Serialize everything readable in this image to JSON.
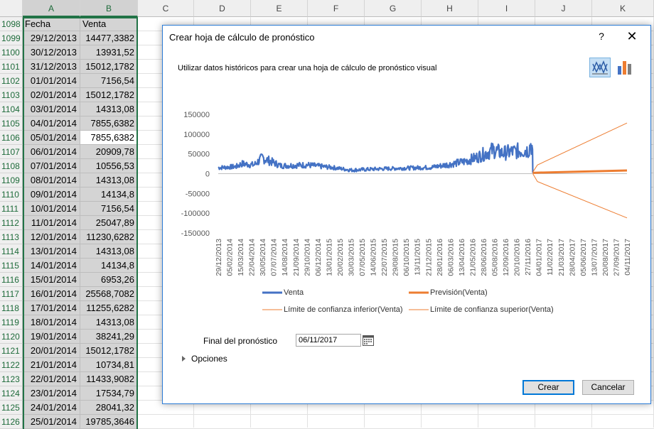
{
  "sheet": {
    "columns": [
      "A",
      "B",
      "C",
      "D",
      "E",
      "F",
      "G",
      "H",
      "I",
      "J",
      "K"
    ],
    "first_row_label": "1098",
    "header_row": {
      "a": "Fecha",
      "b": "Venta"
    },
    "rows": [
      {
        "n": "1099",
        "date": "29/12/2013",
        "value": "14477,3382"
      },
      {
        "n": "1100",
        "date": "30/12/2013",
        "value": "13931,52"
      },
      {
        "n": "1101",
        "date": "31/12/2013",
        "value": "15012,1782"
      },
      {
        "n": "1102",
        "date": "01/01/2014",
        "value": "7156,54"
      },
      {
        "n": "1103",
        "date": "02/01/2014",
        "value": "15012,1782"
      },
      {
        "n": "1104",
        "date": "03/01/2014",
        "value": "14313,08"
      },
      {
        "n": "1105",
        "date": "04/01/2014",
        "value": "7855,6382"
      },
      {
        "n": "1106",
        "date": "05/01/2014",
        "value": "7855,6382"
      },
      {
        "n": "1107",
        "date": "06/01/2014",
        "value": "20909,78"
      },
      {
        "n": "1108",
        "date": "07/01/2014",
        "value": "10556,53"
      },
      {
        "n": "1109",
        "date": "08/01/2014",
        "value": "14313,08"
      },
      {
        "n": "1110",
        "date": "09/01/2014",
        "value": "14134,8"
      },
      {
        "n": "1111",
        "date": "10/01/2014",
        "value": "7156,54"
      },
      {
        "n": "1112",
        "date": "11/01/2014",
        "value": "25047,89"
      },
      {
        "n": "1113",
        "date": "12/01/2014",
        "value": "11230,6282"
      },
      {
        "n": "1114",
        "date": "13/01/2014",
        "value": "14313,08"
      },
      {
        "n": "1115",
        "date": "14/01/2014",
        "value": "14134,8"
      },
      {
        "n": "1116",
        "date": "15/01/2014",
        "value": "6953,26"
      },
      {
        "n": "1117",
        "date": "16/01/2014",
        "value": "25568,7082"
      },
      {
        "n": "1118",
        "date": "17/01/2014",
        "value": "11255,6282"
      },
      {
        "n": "1119",
        "date": "18/01/2014",
        "value": "14313,08"
      },
      {
        "n": "1120",
        "date": "19/01/2014",
        "value": "38241,29"
      },
      {
        "n": "1121",
        "date": "20/01/2014",
        "value": "15012,1782"
      },
      {
        "n": "1122",
        "date": "21/01/2014",
        "value": "10734,81"
      },
      {
        "n": "1123",
        "date": "22/01/2014",
        "value": "11433,9082"
      },
      {
        "n": "1124",
        "date": "23/01/2014",
        "value": "17534,79"
      },
      {
        "n": "1125",
        "date": "24/01/2014",
        "value": "28041,32"
      },
      {
        "n": "1126",
        "date": "25/01/2014",
        "value": "19785,3646"
      }
    ]
  },
  "dialog": {
    "title": "Crear hoja de cálculo de pronóstico",
    "help_label": "?",
    "close_label": "✕",
    "subtitle": "Utilizar datos históricos para crear una hoja de cálculo de pronóstico visual",
    "line_chart_icon": "line-chart-icon",
    "column_chart_icon": "column-chart-icon",
    "forecast_end_label": "Final del pronóstico",
    "forecast_end_value": "06/11/2017",
    "options_label": "Opciones",
    "create_label": "Crear",
    "cancel_label": "Cancelar",
    "colors": {
      "actual": "#4472c4",
      "forecast": "#ed7d31",
      "accent": "#217346",
      "dialog_border": "#2b7bd6"
    }
  },
  "chart_data": {
    "type": "line",
    "ylim": [
      -150000,
      150000
    ],
    "y_ticks": [
      "150000",
      "100000",
      "50000",
      "0",
      "-50000",
      "-100000",
      "-150000"
    ],
    "x_ticks": [
      "29/12/2013",
      "05/02/2014",
      "15/03/2014",
      "22/04/2014",
      "30/05/2014",
      "07/07/2014",
      "14/08/2014",
      "21/09/2014",
      "29/10/2014",
      "06/12/2014",
      "13/01/2015",
      "20/02/2015",
      "30/03/2015",
      "07/05/2015",
      "14/06/2015",
      "22/07/2015",
      "29/08/2015",
      "06/10/2015",
      "13/11/2015",
      "21/12/2015",
      "28/01/2016",
      "06/03/2016",
      "13/04/2016",
      "21/05/2016",
      "28/06/2016",
      "05/08/2016",
      "12/09/2016",
      "20/10/2016",
      "27/11/2016",
      "04/01/2017",
      "11/02/2017",
      "21/03/2017",
      "28/04/2017",
      "05/06/2017",
      "13/07/2017",
      "20/08/2017",
      "27/09/2017",
      "04/11/2017"
    ],
    "series": [
      {
        "name": "Venta",
        "x": [
          "29/12/2013",
          "01/03/2014",
          "20/03/2014",
          "01/05/2014",
          "30/05/2014",
          "01/08/2014",
          "01/11/2014",
          "01/02/2015",
          "01/04/2015",
          "01/07/2015",
          "01/10/2015",
          "01/01/2016",
          "15/03/2016",
          "20/04/2016",
          "01/06/2016",
          "01/08/2016",
          "01/09/2016",
          "01/11/2016",
          "01/12/2016",
          "08/12/2016",
          "14/12/2016",
          "15/12/2016"
        ],
        "values": [
          15000,
          18000,
          25000,
          22000,
          40000,
          20000,
          22000,
          15000,
          9000,
          12000,
          14000,
          16000,
          25000,
          30000,
          40000,
          60000,
          52000,
          58000,
          60000,
          75000,
          62000,
          2000
        ]
      },
      {
        "name": "Previsión(Venta)",
        "x": [
          "15/12/2016",
          "31/12/2016",
          "04/11/2017"
        ],
        "values": [
          2000,
          2500,
          8000
        ]
      },
      {
        "name": "Límite de confianza inferior(Venta)",
        "x": [
          "15/12/2016",
          "31/12/2016",
          "04/11/2017"
        ],
        "values": [
          0,
          -20000,
          -112000
        ]
      },
      {
        "name": "Límite de confianza superior(Venta)",
        "x": [
          "15/12/2016",
          "31/12/2016",
          "04/11/2017"
        ],
        "values": [
          4000,
          22000,
          128000
        ]
      }
    ],
    "legend": [
      "Venta",
      "Previsión(Venta)",
      "Límite de confianza inferior(Venta)",
      "Límite de confianza superior(Venta)"
    ],
    "legend_position": "bottom",
    "grid": false
  }
}
